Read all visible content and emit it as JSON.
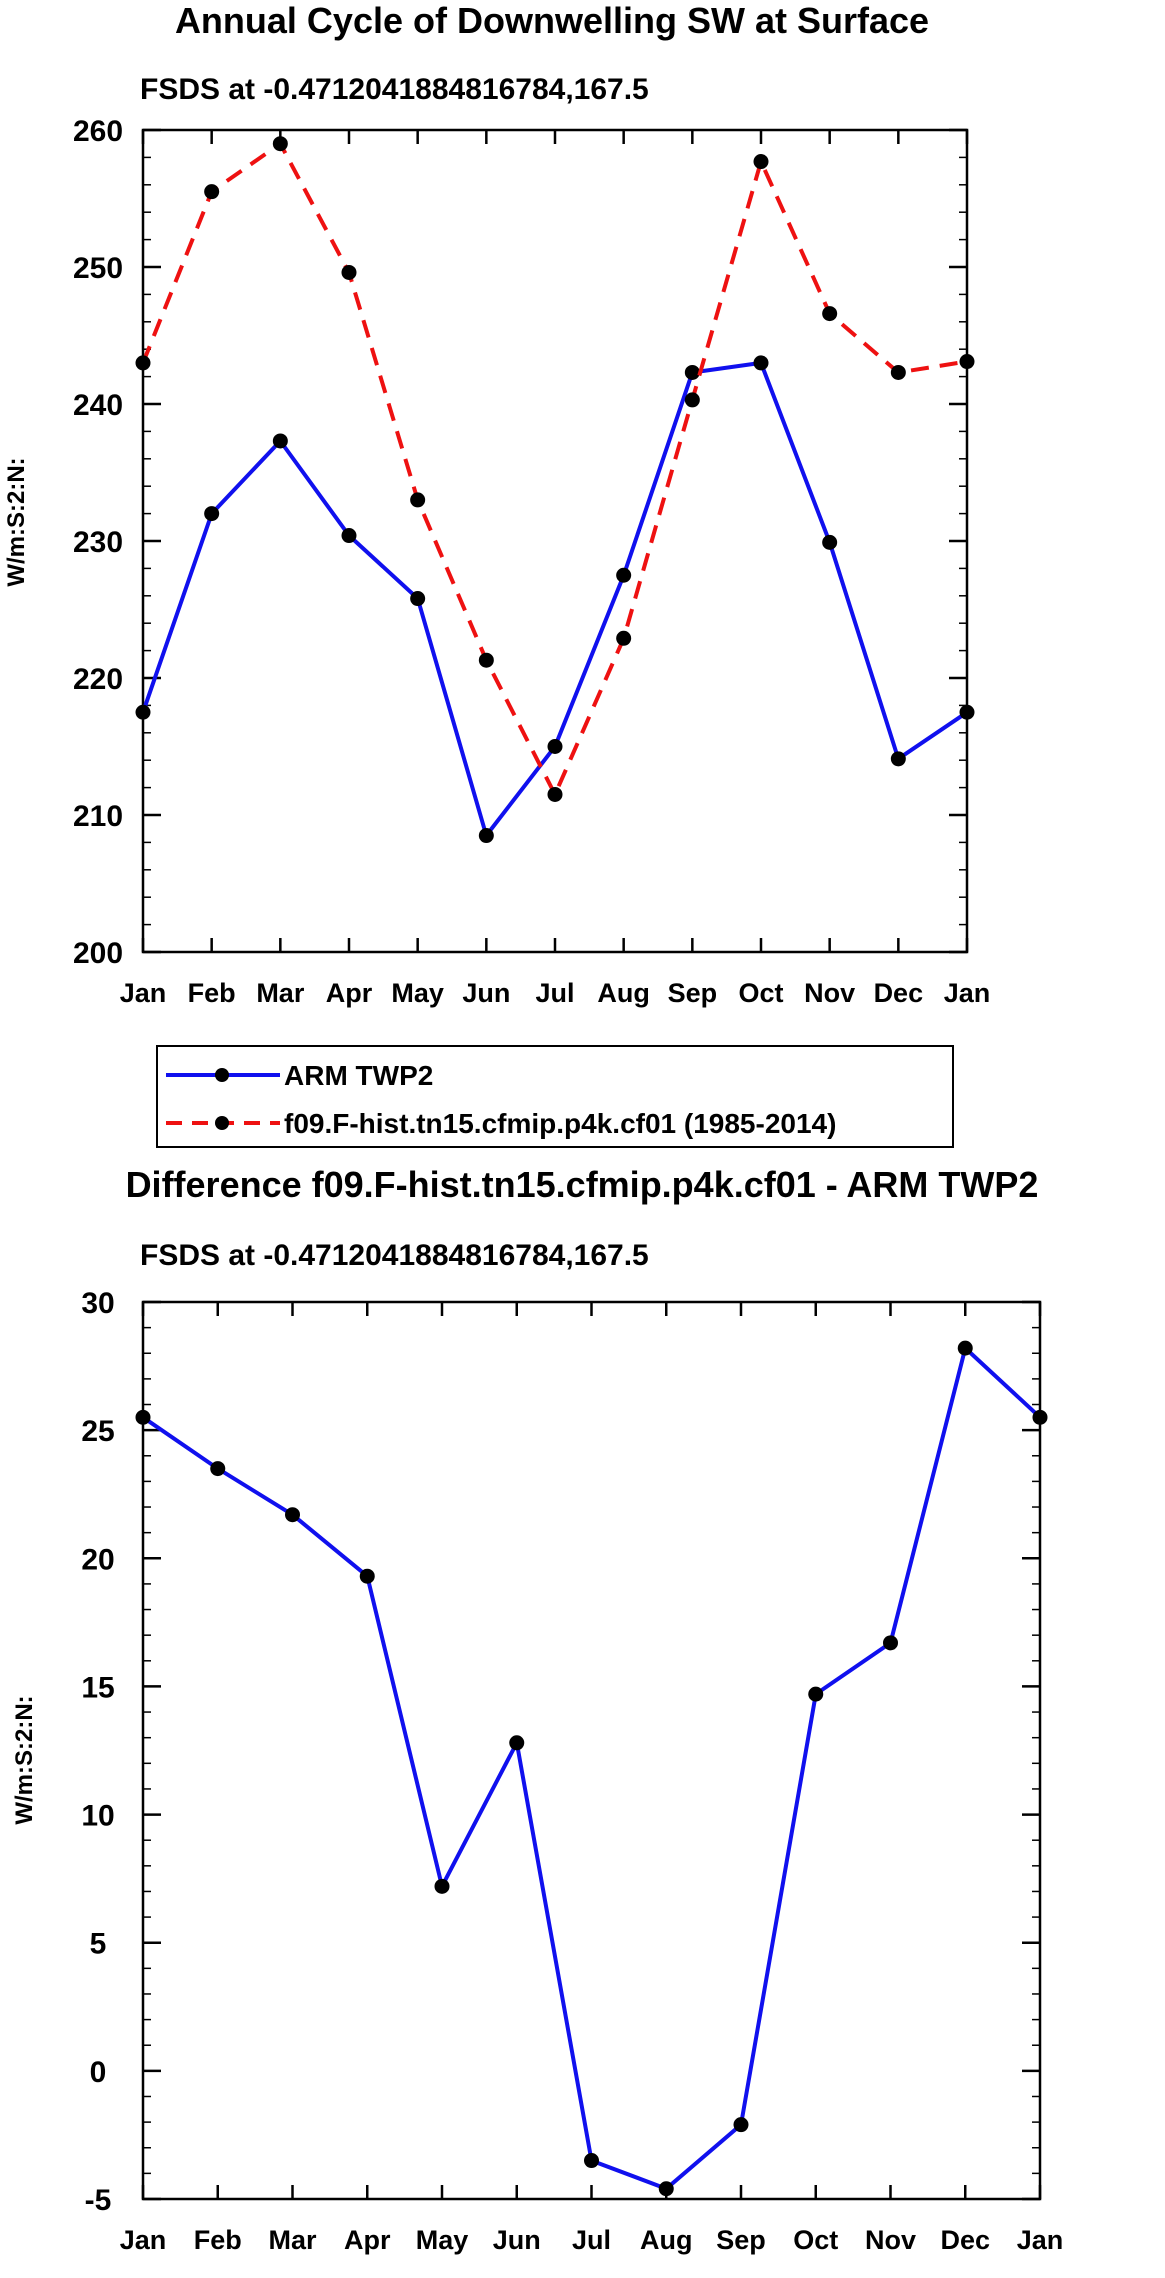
{
  "chart_data": [
    {
      "type": "line",
      "title": "Annual Cycle of Downwelling SW at Surface",
      "subtitle": "FSDS at -0.4712041884816784,167.5",
      "xlabel": "",
      "ylabel": "W/m:S:2:N:",
      "categories": [
        "Jan",
        "Feb",
        "Mar",
        "Apr",
        "May",
        "Jun",
        "Jul",
        "Aug",
        "Sep",
        "Oct",
        "Nov",
        "Dec",
        "Jan"
      ],
      "ylim": [
        200,
        260
      ],
      "yticks": [
        200,
        210,
        220,
        230,
        240,
        250,
        260
      ],
      "ytick_labels": [
        "200",
        "210",
        "220",
        "230",
        "240",
        "250",
        "260"
      ],
      "legend": {
        "placement": "below",
        "entries": [
          "ARM TWP2",
          "f09.F-hist.tn15.cfmip.p4k.cf01 (1985-2014)"
        ]
      },
      "series": [
        {
          "name": "ARM TWP2",
          "color": "#1010ee",
          "dash": "solid",
          "values": [
            217.5,
            232.0,
            237.3,
            230.4,
            225.8,
            208.5,
            215.0,
            227.5,
            242.3,
            243.0,
            229.9,
            214.1,
            217.5
          ]
        },
        {
          "name": "f09.F-hist.tn15.cfmip.p4k.cf01 (1985-2014)",
          "color": "#ee1111",
          "dash": "dashed",
          "values": [
            243.0,
            255.5,
            259.0,
            249.6,
            233.0,
            221.3,
            211.5,
            222.9,
            240.3,
            257.7,
            246.6,
            242.3,
            243.1
          ]
        }
      ]
    },
    {
      "type": "line",
      "title": "Difference f09.F-hist.tn15.cfmip.p4k.cf01 - ARM TWP2",
      "subtitle": "FSDS at -0.4712041884816784,167.5",
      "xlabel": "",
      "ylabel": "W/m:S:2:N:",
      "categories": [
        "Jan",
        "Feb",
        "Mar",
        "Apr",
        "May",
        "Jun",
        "Jul",
        "Aug",
        "Sep",
        "Oct",
        "Nov",
        "Dec",
        "Jan"
      ],
      "ylim": [
        -5,
        30
      ],
      "yticks": [
        -5,
        0,
        5,
        10,
        15,
        20,
        25,
        30
      ],
      "ytick_labels": [
        "-5",
        "0",
        "5",
        "10",
        "15",
        "20",
        "25",
        "30"
      ],
      "series": [
        {
          "name": "Difference",
          "color": "#1010ee",
          "dash": "solid",
          "values": [
            25.5,
            23.5,
            21.7,
            19.3,
            7.2,
            12.8,
            -3.5,
            -4.6,
            -2.1,
            14.7,
            16.7,
            28.2,
            25.5
          ]
        }
      ]
    }
  ]
}
